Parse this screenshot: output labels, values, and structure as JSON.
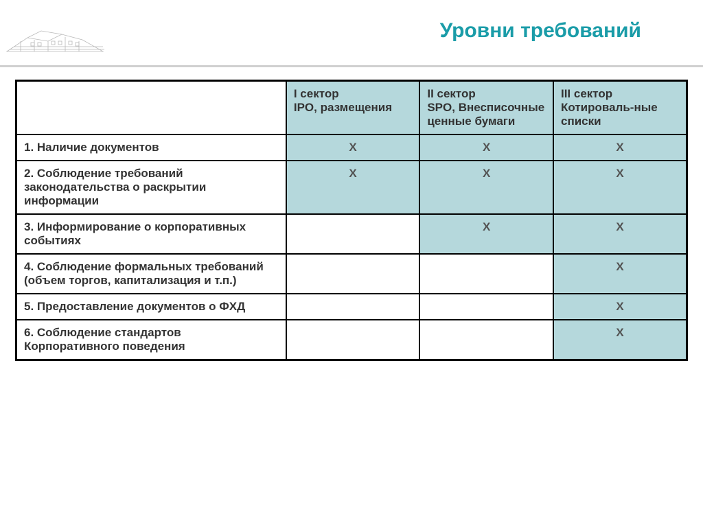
{
  "title": "Уровни требований",
  "table": {
    "headers": {
      "col1_line1": "I сектор",
      "col1_line2": "IPO, размещения",
      "col2_line1": "II сектор",
      "col2_line2": "SPO, Внесписочные ценные бумаги",
      "col3_line1": "III сектор",
      "col3_line2": "Котироваль-ные списки"
    },
    "rows": [
      {
        "label": "1. Наличие документов",
        "c1": "X",
        "c2": "X",
        "c3": "X"
      },
      {
        "label": "2. Соблюдение требований законодательства о раскрытии информации",
        "c1": "X",
        "c2": "X",
        "c3": "X"
      },
      {
        "label": "3. Информирование о корпоративных событиях",
        "c1": "",
        "c2": "X",
        "c3": "X"
      },
      {
        "label": "4. Соблюдение формальных требований (объем торгов, капитализация и т.п.)",
        "c1": "",
        "c2": "",
        "c3": "X"
      },
      {
        "label": "5. Предоставление документов о ФХД",
        "c1": "",
        "c2": "",
        "c3": "X"
      },
      {
        "label": "6. Соблюдение стандартов Корпоративного поведения",
        "c1": "",
        "c2": "",
        "c3": "X"
      }
    ],
    "colors": {
      "highlight_bg": "#b5d8dc",
      "title_color": "#1a9ca8",
      "border_color": "#000000"
    }
  }
}
